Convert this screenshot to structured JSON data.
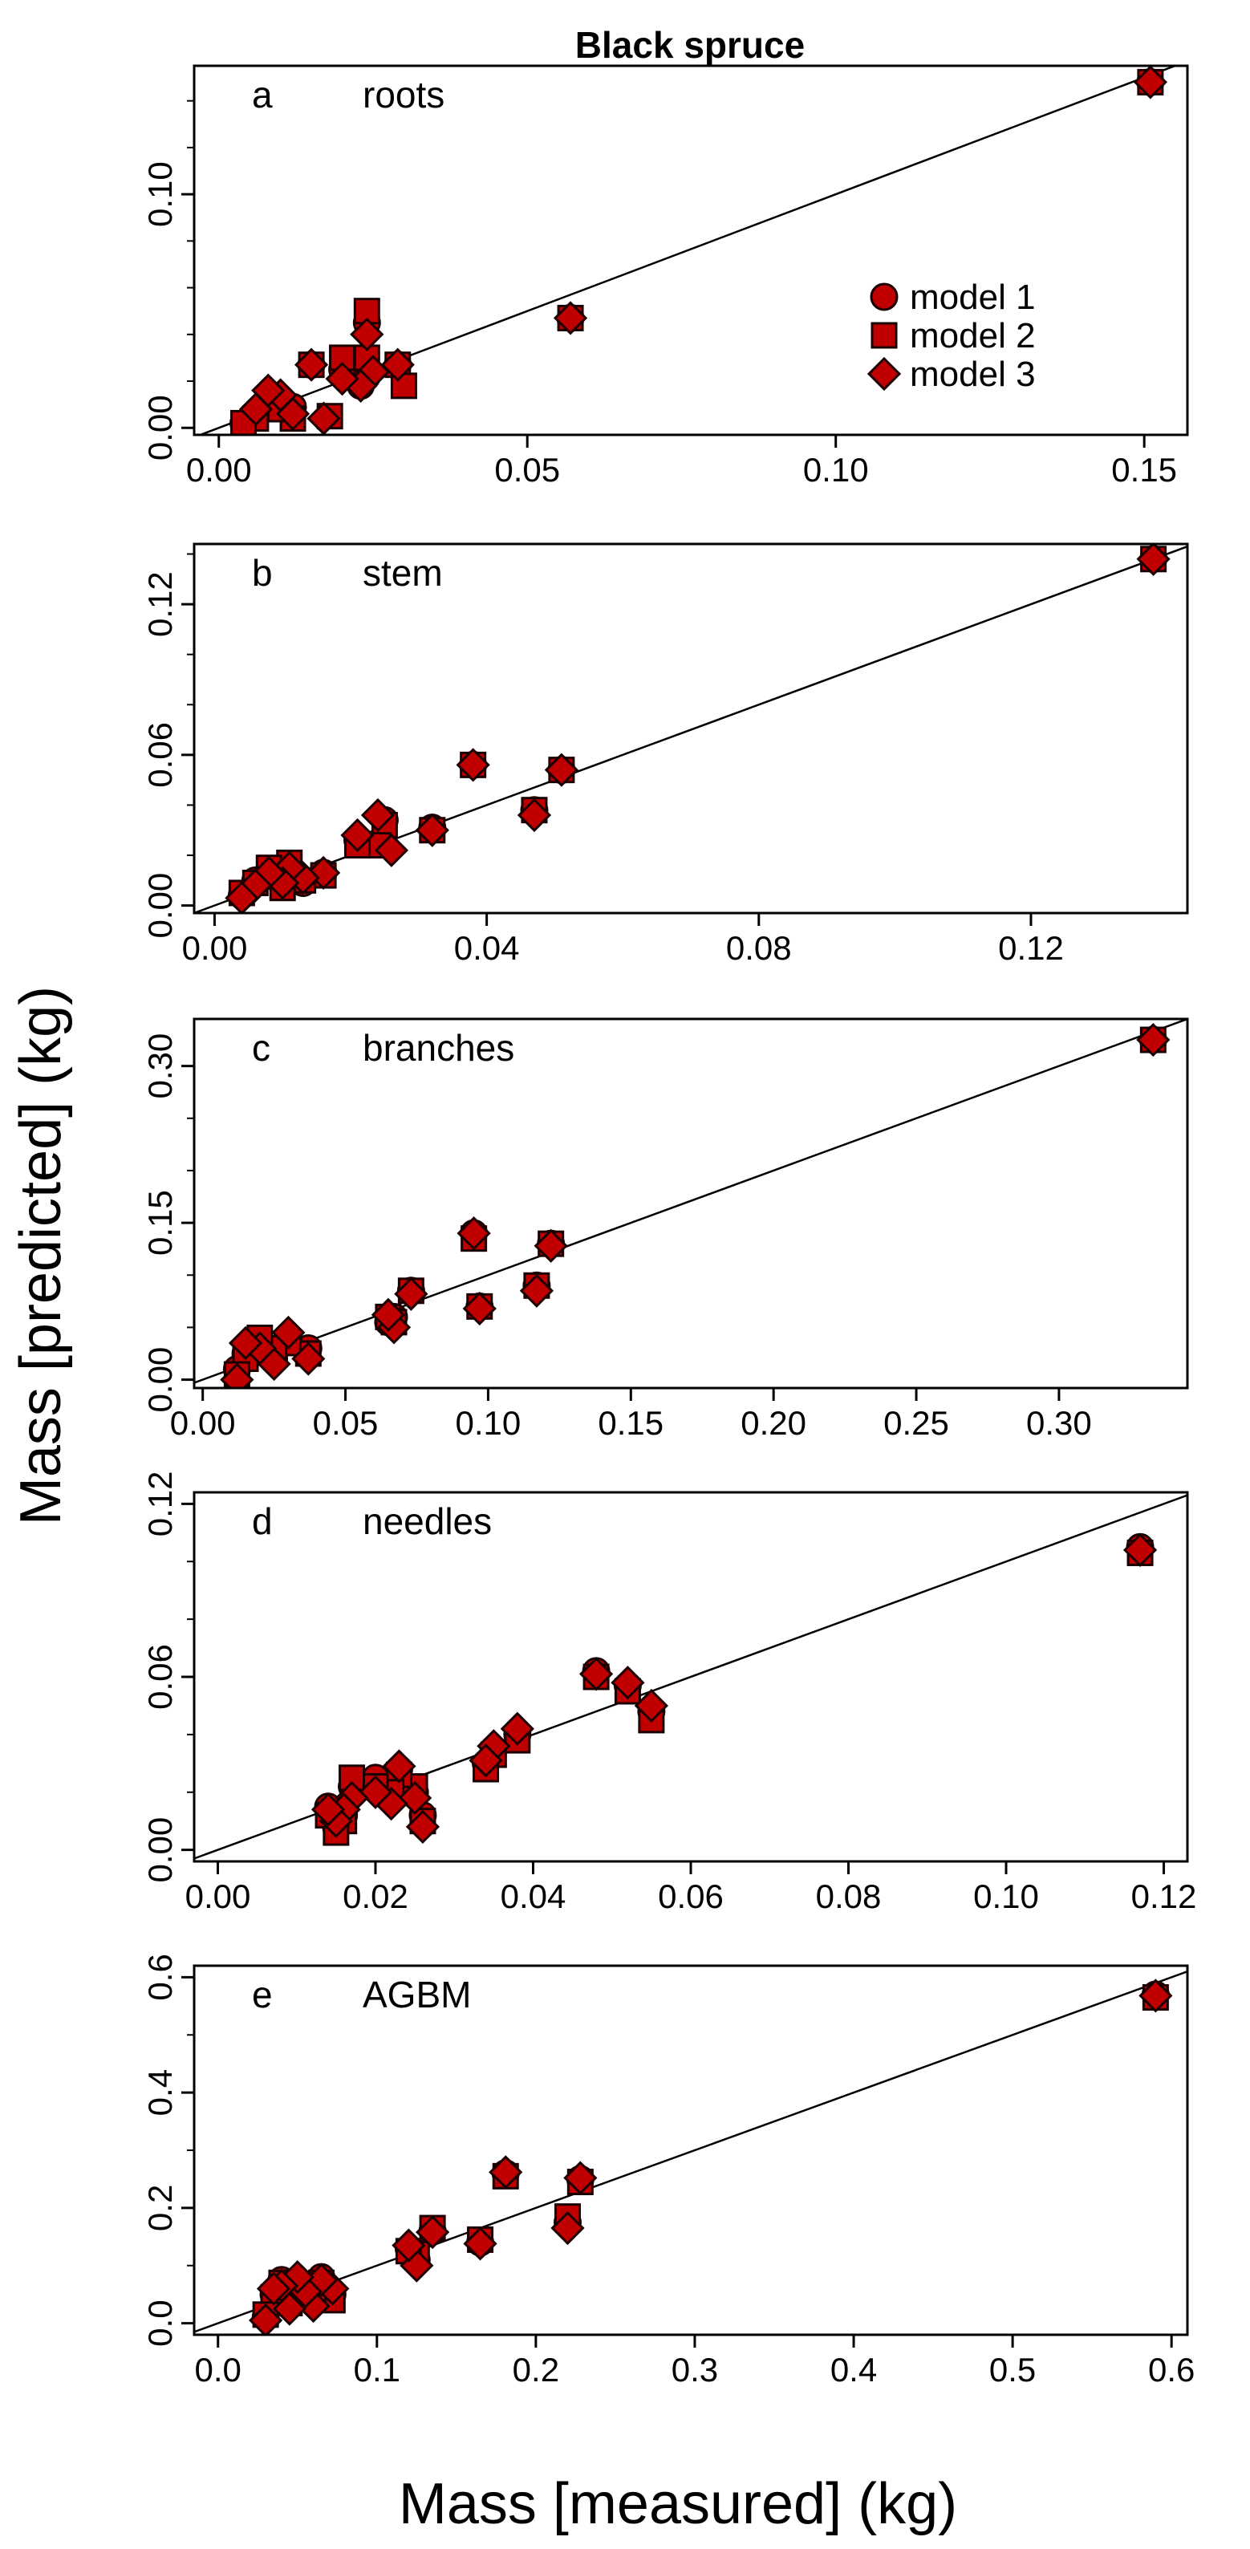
{
  "figure": {
    "title": "Black spruce",
    "xlabel": "Mass [measured] (kg)",
    "ylabel": "Mass [predicted] (kg)"
  },
  "colors": {
    "marker_fill": "#c00000",
    "marker_stroke": "#1a0000",
    "axis": "#000000"
  },
  "chart_data": [
    {
      "type": "scatter",
      "panel": "a",
      "label": "roots",
      "xlim": [
        -0.004,
        0.157
      ],
      "ylim": [
        -0.003,
        0.155
      ],
      "xticks": [
        0.0,
        0.05,
        0.1,
        0.15
      ],
      "xtick_labels": [
        "0.00",
        "0.05",
        "0.10",
        "0.15"
      ],
      "yticks": [
        0.0,
        0.1
      ],
      "ytick_labels": [
        "0.00",
        "0.10"
      ],
      "ytick_minor": [
        0.02,
        0.04,
        0.06,
        0.08,
        0.12,
        0.14
      ],
      "one_to_one_line": true,
      "legend": {
        "position": "bottom-right",
        "entries": [
          "model 1",
          "model 2",
          "model 3"
        ],
        "markers": [
          "circle",
          "square",
          "diamond"
        ]
      },
      "series": [
        {
          "name": "model 1",
          "marker": "circle",
          "x": [
            0.151,
            0.057,
            0.024,
            0.024,
            0.029,
            0.023,
            0.02,
            0.015,
            0.012,
            0.01,
            0.008,
            0.006,
            0.004
          ],
          "y": [
            0.148,
            0.047,
            0.045,
            0.022,
            0.027,
            0.018,
            0.025,
            0.027,
            0.009,
            0.012,
            0.011,
            0.006,
            0.002
          ]
        },
        {
          "name": "model 2",
          "marker": "square",
          "x": [
            0.151,
            0.057,
            0.024,
            0.024,
            0.029,
            0.03,
            0.02,
            0.015,
            0.012,
            0.01,
            0.018,
            0.006,
            0.004
          ],
          "y": [
            0.148,
            0.047,
            0.05,
            0.03,
            0.027,
            0.018,
            0.03,
            0.027,
            0.004,
            0.008,
            0.005,
            0.004,
            0.002
          ]
        },
        {
          "name": "model 3",
          "marker": "diamond",
          "x": [
            0.151,
            0.057,
            0.024,
            0.025,
            0.029,
            0.023,
            0.02,
            0.015,
            0.012,
            0.01,
            0.008,
            0.006,
            0.017
          ],
          "y": [
            0.148,
            0.047,
            0.04,
            0.024,
            0.027,
            0.018,
            0.021,
            0.027,
            0.006,
            0.014,
            0.016,
            0.008,
            0.004
          ]
        }
      ]
    },
    {
      "type": "scatter",
      "panel": "b",
      "label": "stem",
      "xlim": [
        -0.003,
        0.143
      ],
      "ylim": [
        -0.003,
        0.144
      ],
      "xticks": [
        0.0,
        0.04,
        0.08,
        0.12
      ],
      "xtick_labels": [
        "0.00",
        "0.04",
        "0.08",
        "0.12"
      ],
      "yticks": [
        0.0,
        0.06,
        0.12
      ],
      "ytick_labels": [
        "0.00",
        "0.06",
        "0.12"
      ],
      "ytick_minor": [
        0.02,
        0.04,
        0.08,
        0.1,
        0.14
      ],
      "one_to_one_line": true,
      "series": [
        {
          "name": "model 1",
          "marker": "circle",
          "x": [
            0.138,
            0.051,
            0.047,
            0.038,
            0.032,
            0.025,
            0.024,
            0.021,
            0.016,
            0.013,
            0.011,
            0.01,
            0.008,
            0.006,
            0.004
          ],
          "y": [
            0.138,
            0.054,
            0.038,
            0.056,
            0.031,
            0.034,
            0.025,
            0.026,
            0.013,
            0.009,
            0.016,
            0.008,
            0.014,
            0.01,
            0.004
          ]
        },
        {
          "name": "model 2",
          "marker": "square",
          "x": [
            0.138,
            0.051,
            0.047,
            0.038,
            0.032,
            0.025,
            0.024,
            0.021,
            0.016,
            0.013,
            0.011,
            0.01,
            0.008,
            0.006,
            0.004
          ],
          "y": [
            0.138,
            0.054,
            0.038,
            0.056,
            0.03,
            0.032,
            0.024,
            0.024,
            0.012,
            0.01,
            0.017,
            0.007,
            0.015,
            0.009,
            0.005
          ]
        },
        {
          "name": "model 3",
          "marker": "diamond",
          "x": [
            0.138,
            0.051,
            0.047,
            0.038,
            0.032,
            0.026,
            0.024,
            0.021,
            0.016,
            0.013,
            0.011,
            0.01,
            0.008,
            0.006,
            0.004
          ],
          "y": [
            0.138,
            0.054,
            0.036,
            0.056,
            0.03,
            0.022,
            0.036,
            0.028,
            0.013,
            0.011,
            0.015,
            0.009,
            0.013,
            0.008,
            0.003
          ]
        }
      ]
    },
    {
      "type": "scatter",
      "panel": "c",
      "label": "branches",
      "xlim": [
        -0.003,
        0.345
      ],
      "ylim": [
        -0.008,
        0.345
      ],
      "xticks": [
        0.0,
        0.05,
        0.1,
        0.15,
        0.2,
        0.25,
        0.3
      ],
      "xtick_labels": [
        "0.00",
        "0.05",
        "0.10",
        "0.15",
        "0.20",
        "0.25",
        "0.30"
      ],
      "yticks": [
        0.0,
        0.15,
        0.3
      ],
      "ytick_labels": [
        "0.00",
        "0.15",
        "0.30"
      ],
      "ytick_minor": [
        0.05,
        0.1,
        0.2,
        0.25
      ],
      "one_to_one_line": true,
      "series": [
        {
          "name": "model 1",
          "marker": "circle",
          "x": [
            0.333,
            0.122,
            0.117,
            0.097,
            0.095,
            0.073,
            0.067,
            0.065,
            0.037,
            0.03,
            0.025,
            0.02,
            0.015,
            0.012
          ],
          "y": [
            0.325,
            0.13,
            0.09,
            0.07,
            0.14,
            0.085,
            0.06,
            0.055,
            0.03,
            0.04,
            0.02,
            0.035,
            0.025,
            0.01
          ]
        },
        {
          "name": "model 2",
          "marker": "square",
          "x": [
            0.333,
            0.122,
            0.117,
            0.097,
            0.095,
            0.073,
            0.067,
            0.065,
            0.037,
            0.03,
            0.025,
            0.02,
            0.015,
            0.012
          ],
          "y": [
            0.325,
            0.13,
            0.09,
            0.07,
            0.135,
            0.085,
            0.055,
            0.06,
            0.025,
            0.035,
            0.03,
            0.04,
            0.02,
            0.005
          ]
        },
        {
          "name": "model 3",
          "marker": "diamond",
          "x": [
            0.333,
            0.122,
            0.117,
            0.097,
            0.095,
            0.073,
            0.067,
            0.065,
            0.037,
            0.03,
            0.025,
            0.02,
            0.015,
            0.012
          ],
          "y": [
            0.325,
            0.128,
            0.085,
            0.068,
            0.14,
            0.082,
            0.05,
            0.062,
            0.02,
            0.045,
            0.015,
            0.03,
            0.035,
            0.0
          ]
        }
      ]
    },
    {
      "type": "scatter",
      "panel": "d",
      "label": "needles",
      "xlim": [
        -0.003,
        0.123
      ],
      "ylim": [
        -0.004,
        0.124
      ],
      "xticks": [
        0.0,
        0.02,
        0.04,
        0.06,
        0.08,
        0.1,
        0.12
      ],
      "xtick_labels": [
        "0.00",
        "0.02",
        "0.04",
        "0.06",
        "0.08",
        "0.10",
        "0.12"
      ],
      "yticks": [
        0.0,
        0.06,
        0.12
      ],
      "ytick_labels": [
        "0.00",
        "0.06",
        "0.12"
      ],
      "ytick_minor": [
        0.02,
        0.04,
        0.08,
        0.1
      ],
      "one_to_one_line": true,
      "series": [
        {
          "name": "model 1",
          "marker": "circle",
          "x": [
            0.117,
            0.055,
            0.052,
            0.048,
            0.038,
            0.035,
            0.034,
            0.026,
            0.025,
            0.023,
            0.022,
            0.02,
            0.017,
            0.016,
            0.015,
            0.014
          ],
          "y": [
            0.105,
            0.048,
            0.057,
            0.062,
            0.04,
            0.035,
            0.03,
            0.012,
            0.02,
            0.028,
            0.018,
            0.025,
            0.022,
            0.012,
            0.008,
            0.015
          ]
        },
        {
          "name": "model 2",
          "marker": "square",
          "x": [
            0.117,
            0.055,
            0.052,
            0.048,
            0.038,
            0.035,
            0.034,
            0.026,
            0.025,
            0.023,
            0.022,
            0.02,
            0.017,
            0.016,
            0.015,
            0.014
          ],
          "y": [
            0.103,
            0.045,
            0.055,
            0.06,
            0.038,
            0.033,
            0.028,
            0.01,
            0.022,
            0.026,
            0.02,
            0.022,
            0.025,
            0.01,
            0.006,
            0.012
          ]
        },
        {
          "name": "model 3",
          "marker": "diamond",
          "x": [
            0.117,
            0.055,
            0.052,
            0.048,
            0.038,
            0.035,
            0.034,
            0.026,
            0.025,
            0.023,
            0.022,
            0.02,
            0.017,
            0.016,
            0.015,
            0.014
          ],
          "y": [
            0.104,
            0.05,
            0.058,
            0.061,
            0.042,
            0.036,
            0.031,
            0.008,
            0.018,
            0.029,
            0.016,
            0.02,
            0.018,
            0.014,
            0.01,
            0.014
          ]
        }
      ]
    },
    {
      "type": "scatter",
      "panel": "e",
      "label": "AGBM",
      "xlim": [
        -0.015,
        0.61
      ],
      "ylim": [
        -0.02,
        0.62
      ],
      "xticks": [
        0.0,
        0.1,
        0.2,
        0.3,
        0.4,
        0.5,
        0.6
      ],
      "xtick_labels": [
        "0.0",
        "0.1",
        "0.2",
        "0.3",
        "0.4",
        "0.5",
        "0.6"
      ],
      "yticks": [
        0.0,
        0.2,
        0.4,
        0.6
      ],
      "ytick_labels": [
        "0.0",
        "0.2",
        "0.4",
        "0.6"
      ],
      "ytick_minor": [
        0.1,
        0.3,
        0.5
      ],
      "one_to_one_line": true,
      "series": [
        {
          "name": "model 1",
          "marker": "circle",
          "x": [
            0.59,
            0.228,
            0.22,
            0.181,
            0.165,
            0.135,
            0.125,
            0.12,
            0.072,
            0.065,
            0.06,
            0.055,
            0.05,
            0.045,
            0.04,
            0.035,
            0.03
          ],
          "y": [
            0.57,
            0.25,
            0.175,
            0.26,
            0.14,
            0.16,
            0.11,
            0.13,
            0.05,
            0.08,
            0.04,
            0.06,
            0.07,
            0.03,
            0.075,
            0.05,
            0.01
          ]
        },
        {
          "name": "model 2",
          "marker": "square",
          "x": [
            0.59,
            0.228,
            0.22,
            0.181,
            0.165,
            0.135,
            0.125,
            0.12,
            0.072,
            0.065,
            0.06,
            0.055,
            0.05,
            0.045,
            0.04,
            0.035,
            0.03
          ],
          "y": [
            0.565,
            0.245,
            0.185,
            0.255,
            0.145,
            0.165,
            0.12,
            0.125,
            0.04,
            0.07,
            0.045,
            0.065,
            0.06,
            0.035,
            0.07,
            0.045,
            0.015
          ]
        },
        {
          "name": "model 3",
          "marker": "diamond",
          "x": [
            0.59,
            0.228,
            0.22,
            0.181,
            0.165,
            0.135,
            0.125,
            0.12,
            0.072,
            0.065,
            0.06,
            0.055,
            0.05,
            0.045,
            0.04,
            0.035,
            0.03
          ],
          "y": [
            0.568,
            0.252,
            0.165,
            0.262,
            0.138,
            0.158,
            0.1,
            0.135,
            0.06,
            0.075,
            0.03,
            0.055,
            0.08,
            0.025,
            0.065,
            0.06,
            0.005
          ]
        }
      ]
    }
  ]
}
